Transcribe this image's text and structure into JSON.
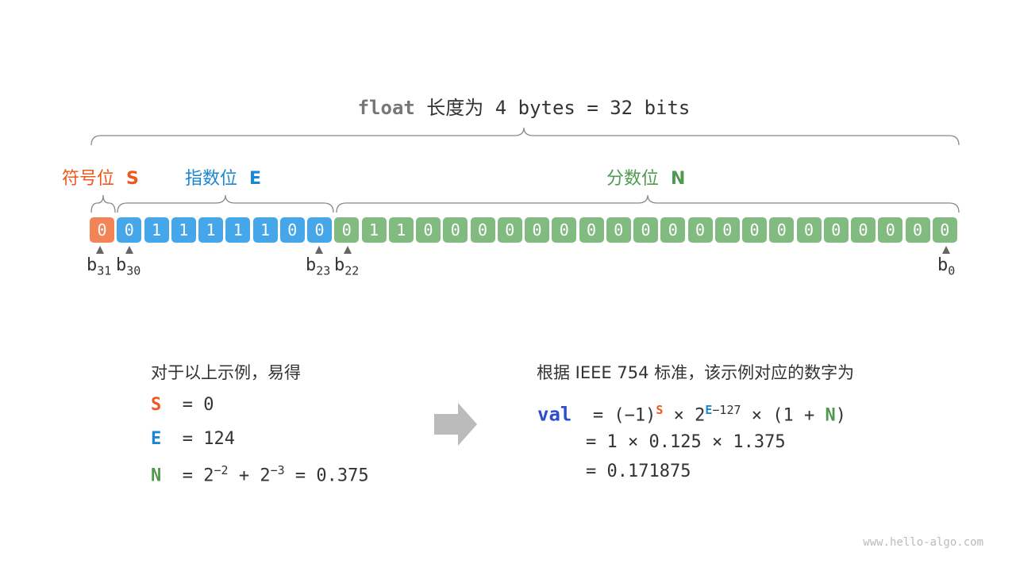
{
  "title": {
    "keyword": "float",
    "rest": " 长度为 4 bytes = 32 bits"
  },
  "sections": {
    "sign": {
      "label": "符号位",
      "symbol": "S",
      "color": "#f0571d",
      "cell_color": "#f38457"
    },
    "exponent": {
      "label": "指数位",
      "symbol": "E",
      "color": "#1b86d2",
      "cell_color": "#45a6ea"
    },
    "mantissa": {
      "label": "分数位",
      "symbol": "N",
      "color": "#4f9a4f",
      "cell_color": "#82bb80"
    }
  },
  "bits": "00111110001100000000000000000000",
  "bit_labels": [
    {
      "b": "b",
      "sub": "31"
    },
    {
      "b": "b",
      "sub": "30"
    },
    {
      "b": "b",
      "sub": "23"
    },
    {
      "b": "b",
      "sub": "22"
    },
    {
      "b": "b",
      "sub": "0"
    }
  ],
  "left": {
    "heading": "对于以上示例，易得",
    "s_line": "= 0",
    "e_line": "= 124",
    "n_eq": "=",
    "n_base1": "2",
    "n_exp1": "−2",
    "n_plus": "+",
    "n_base2": "2",
    "n_exp2": "−3",
    "n_result": "= 0.375"
  },
  "right": {
    "heading": "根据 IEEE 754 标准，该示例对应的数字为",
    "val": "val",
    "l1a": "= (−1)",
    "l1b": "× 2",
    "l1exp": "−127",
    "l1c": "× (1 +",
    "l1d": ")",
    "l2": "= 1 × 0.125 × 1.375",
    "l3": "= 0.171875"
  },
  "watermark": "www.hello-algo.com"
}
